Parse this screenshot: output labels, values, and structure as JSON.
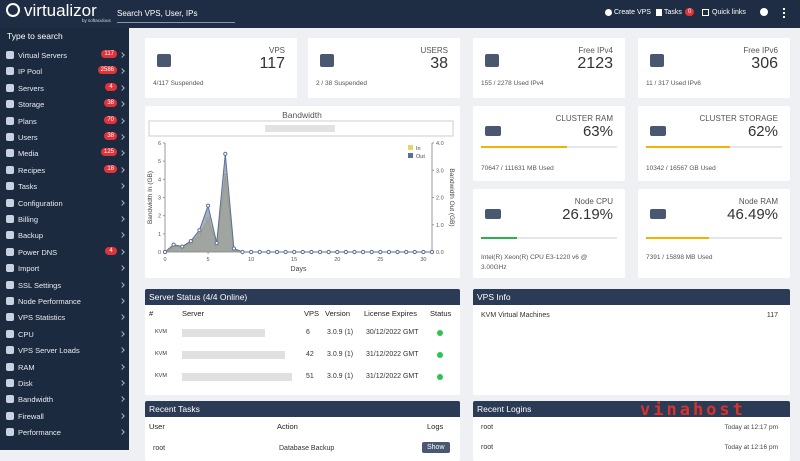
{
  "header": {
    "logo": "virtualizor",
    "logo_sub": "by softaculous",
    "search": "Search VPS, User, IPs",
    "create_vps": "Create VPS",
    "tasks": "Tasks",
    "tasks_badge": "0",
    "quick_links": "Quick links"
  },
  "sidebar": {
    "search": "Type to search",
    "items": [
      {
        "label": "Virtual Servers",
        "badge": "117"
      },
      {
        "label": "IP Pool",
        "badge": "2586"
      },
      {
        "label": "Servers",
        "badge": "4"
      },
      {
        "label": "Storage",
        "badge": "38"
      },
      {
        "label": "Plans",
        "badge": "70"
      },
      {
        "label": "Users",
        "badge": "38"
      },
      {
        "label": "Media",
        "badge": "125"
      },
      {
        "label": "Recipes",
        "badge": "18"
      },
      {
        "label": "Tasks"
      },
      {
        "label": "Configuration"
      },
      {
        "label": "Billing"
      },
      {
        "label": "Backup"
      },
      {
        "label": "Power DNS",
        "badge": "4"
      },
      {
        "label": "Import"
      },
      {
        "label": "SSL Settings"
      },
      {
        "label": "Node Performance"
      },
      {
        "label": "VPS Statistics"
      },
      {
        "label": "CPU"
      },
      {
        "label": "VPS Server Loads"
      },
      {
        "label": "RAM"
      },
      {
        "label": "Disk"
      },
      {
        "label": "Bandwidth"
      },
      {
        "label": "Firewall"
      },
      {
        "label": "Performance"
      }
    ]
  },
  "stats": [
    {
      "title": "VPS",
      "value": "117",
      "note": "4/117 Suspended"
    },
    {
      "title": "USERS",
      "value": "38",
      "note": "2 / 38 Suspended"
    },
    {
      "title": "Free IPv4",
      "value": "2123",
      "note": "155 / 2278 Used IPv4"
    },
    {
      "title": "Free IPv6",
      "value": "306",
      "note": "11 / 317 Used IPv6"
    }
  ],
  "meters": [
    {
      "title": "CLUSTER RAM",
      "percent": {
        "value": 63,
        "label": "63%"
      },
      "note": "70647 / 111631 MB Used",
      "color": "#f0b400"
    },
    {
      "title": "CLUSTER STORAGE",
      "percent": {
        "value": 62,
        "label": "62%"
      },
      "note": "10342 / 16567 GB Used",
      "color": "#f0b400"
    },
    {
      "title": "Node CPU",
      "percent": {
        "value": 26.19,
        "label": "26.19%"
      },
      "note": "Intel(R) Xeon(R) CPU E3-1220 v6 @ 3.00GHz",
      "color": "#2eb04f"
    },
    {
      "title": "Node RAM",
      "percent": {
        "value": 46.49,
        "label": "46.49%"
      },
      "note": "7391 / 15898 MB Used",
      "color": "#f0b400"
    }
  ],
  "chart_data": {
    "type": "area",
    "title": "Bandwidth",
    "x_label": "Days",
    "y_label": "Bandwidth In (GB)",
    "y2_label": "Bandwidth Out (GB)",
    "x": [
      0,
      1,
      2,
      3,
      4,
      5,
      6,
      7,
      8,
      9,
      10,
      11,
      12,
      13,
      14,
      15,
      16,
      17,
      18,
      19,
      20,
      21,
      22,
      23,
      24,
      25,
      26,
      27,
      28,
      29,
      30,
      31
    ],
    "series": [
      {
        "name": "In",
        "color": "#e9d36a",
        "values": [
          0,
          0.3,
          0.3,
          0.5,
          0.9,
          1.8,
          0.4,
          4.2,
          0.1,
          0,
          0,
          0,
          0,
          0,
          0,
          0,
          0,
          0,
          0,
          0,
          0,
          0,
          0,
          0,
          0,
          0,
          0,
          0,
          0,
          0,
          0,
          0
        ]
      },
      {
        "name": "Out",
        "color": "#5b6f98",
        "axis": "y2",
        "values": [
          0,
          0.27,
          0.2,
          0.4,
          0.8,
          1.7,
          0.33,
          3.6,
          0.13,
          0,
          0,
          0,
          0,
          0,
          0,
          0,
          0,
          0,
          0,
          0,
          0,
          0,
          0,
          0,
          0,
          0,
          0,
          0,
          0,
          0,
          0,
          0
        ]
      }
    ],
    "xlim": [
      0,
      31
    ],
    "xticks": [
      0,
      5,
      10,
      15,
      20,
      25,
      30
    ],
    "ylim": [
      0,
      6
    ],
    "yticks": [
      0,
      1,
      2,
      3,
      4,
      5,
      6
    ],
    "y2lim": [
      0,
      4
    ],
    "y2ticks": [
      {
        "value": 0,
        "label": "0.0"
      },
      {
        "value": 1,
        "label": "1.0"
      },
      {
        "value": 2,
        "label": "2.0"
      },
      {
        "value": 3,
        "label": "3.0"
      },
      {
        "value": 4,
        "label": "4.0"
      }
    ],
    "legend": "top-right",
    "grid": false
  },
  "server_status": {
    "title": "Server Status (4/4 Online)",
    "columns": [
      "#",
      "Server",
      "VPS",
      "Version",
      "License Expires",
      "Status"
    ],
    "rows": [
      {
        "type": "KVM",
        "vps": "6",
        "version": "3.0.9 (1)",
        "expires": "30/12/2022 GMT"
      },
      {
        "type": "KVM",
        "vps": "42",
        "version": "3.0.9 (1)",
        "expires": "31/12/2022 GMT"
      },
      {
        "type": "KVM",
        "vps": "51",
        "version": "3.0.9 (1)",
        "expires": "31/12/2022 GMT"
      }
    ]
  },
  "vps_info": {
    "title": "VPS Info",
    "rows": [
      {
        "label": "KVM Virtual Machines",
        "value": "117"
      }
    ]
  },
  "recent_tasks": {
    "title": "Recent Tasks",
    "columns": [
      "User",
      "Action",
      "Logs"
    ],
    "rows": [
      {
        "user": "root",
        "action": "Database Backup",
        "logs": "Show"
      }
    ]
  },
  "recent_logins": {
    "title": "Recent Logins",
    "rows": [
      {
        "user": "root",
        "time": "Today at 12:17 pm"
      },
      {
        "user": "root",
        "time": "Today at 12:16 pm"
      }
    ]
  },
  "watermark": "vinahost"
}
